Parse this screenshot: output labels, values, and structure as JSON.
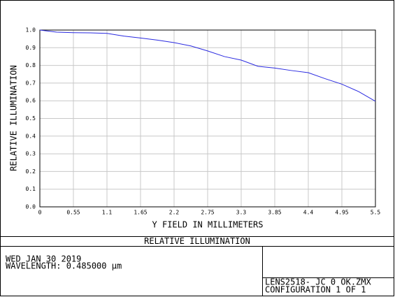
{
  "chart_data": {
    "type": "line",
    "title": "RELATIVE ILLUMINATION",
    "x_label": "Y FIELD IN MILLIMETERS",
    "y_label": "RELATIVE ILLUMINATION",
    "x": [
      0,
      0.275,
      0.55,
      0.825,
      1.1,
      1.375,
      1.65,
      1.925,
      2.2,
      2.475,
      2.75,
      3.025,
      3.3,
      3.575,
      3.85,
      4.125,
      4.4,
      4.675,
      4.95,
      5.225,
      5.5
    ],
    "values": [
      1.0,
      0.988,
      0.985,
      0.984,
      0.981,
      0.966,
      0.955,
      0.943,
      0.929,
      0.91,
      0.882,
      0.85,
      0.83,
      0.795,
      0.785,
      0.771,
      0.759,
      0.725,
      0.694,
      0.652,
      0.597
    ],
    "color": "#2a2ae0",
    "xlim": [
      0,
      5.5
    ],
    "ylim": [
      0,
      1
    ],
    "xticks": [
      0,
      0.55,
      1.1,
      1.65,
      2.2,
      2.75,
      3.3,
      3.85,
      4.4,
      4.95,
      5.5
    ],
    "yticks": [
      {
        "value": 0,
        "label": "0.0"
      },
      0.1,
      0.2,
      0.3,
      0.4,
      0.5,
      0.6,
      0.7,
      0.8,
      0.9,
      {
        "value": 1,
        "label": "1.0"
      }
    ],
    "grid": true
  },
  "footer": {
    "date": "WED JAN 30 2019",
    "wavelength": "WAVELENGTH: 0.485000 µm",
    "file": "LENS2518- JC 0 OK.ZMX",
    "configuration": "CONFIGURATION 1 OF 1"
  }
}
